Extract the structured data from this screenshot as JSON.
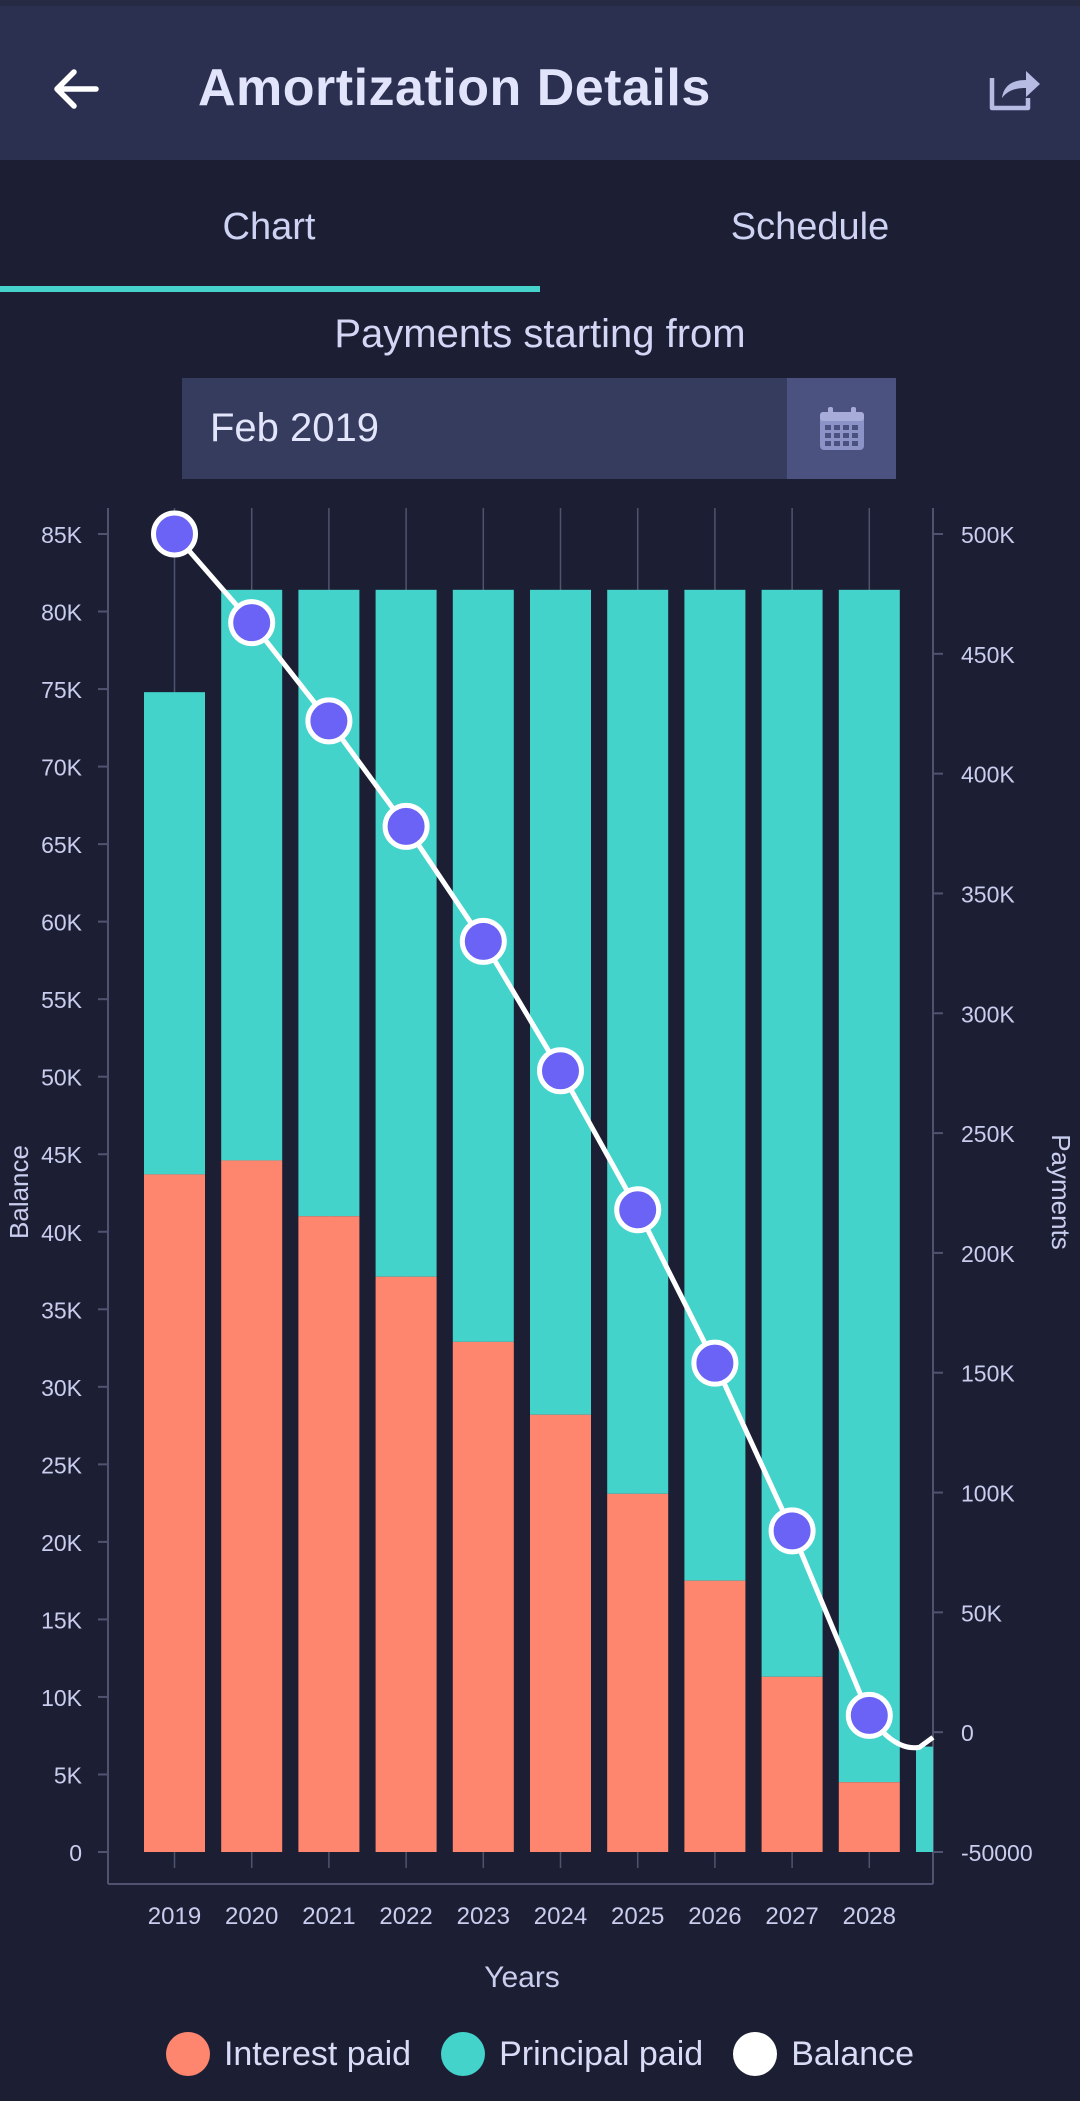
{
  "app": {
    "title": "Amortization Details"
  },
  "icons": {
    "back": "arrow-left-icon",
    "share": "share-icon",
    "calendar": "calendar-icon"
  },
  "tabs": [
    {
      "label": "Chart",
      "active": true
    },
    {
      "label": "Schedule",
      "active": false
    }
  ],
  "payments_section": {
    "label": "Payments starting from",
    "date_value": "Feb 2019"
  },
  "colors": {
    "accent": "#45d3cb",
    "interest": "#fe866f",
    "principal": "#43d3cb",
    "balance_line": "#ffffff",
    "balance_marker": "#6b63f5",
    "background": "#1c1f33"
  },
  "chart_data": {
    "type": "bar",
    "stacked": true,
    "categories": [
      "2019",
      "2020",
      "2021",
      "2022",
      "2023",
      "2024",
      "2025",
      "2026",
      "2027",
      "2028"
    ],
    "xlabel": "Years",
    "ylabel": "Balance",
    "y2label": "Payments",
    "ylim": [
      0,
      85000
    ],
    "y2lim": [
      -50000,
      500000
    ],
    "yticks": [
      "0",
      "5K",
      "10K",
      "15K",
      "20K",
      "25K",
      "30K",
      "35K",
      "40K",
      "45K",
      "50K",
      "55K",
      "60K",
      "65K",
      "70K",
      "75K",
      "80K",
      "85K"
    ],
    "y2ticks": [
      "-50000",
      "0",
      "50K",
      "100K",
      "150K",
      "200K",
      "250K",
      "300K",
      "350K",
      "400K",
      "450K",
      "500K"
    ],
    "grid": "vertical",
    "legend_position": "bottom",
    "series": [
      {
        "name": "Interest paid",
        "type": "bar",
        "axis": "left",
        "color": "#fe866f",
        "values": [
          43700,
          44600,
          41000,
          37100,
          32900,
          28200,
          23100,
          17500,
          11300,
          4500
        ]
      },
      {
        "name": "Principal paid",
        "type": "bar",
        "axis": "left",
        "color": "#43d3cb",
        "values": [
          31100,
          36800,
          40400,
          44300,
          48500,
          53200,
          58300,
          63900,
          70100,
          76900
        ]
      },
      {
        "name": "Balance",
        "type": "line",
        "axis": "right",
        "color": "#ffffff",
        "values": [
          500000,
          463000,
          422000,
          378000,
          330000,
          276000,
          218000,
          154000,
          84000,
          7000
        ]
      }
    ],
    "extra_points": {
      "principal_2029": 6800,
      "balance_2029": -3000
    }
  }
}
